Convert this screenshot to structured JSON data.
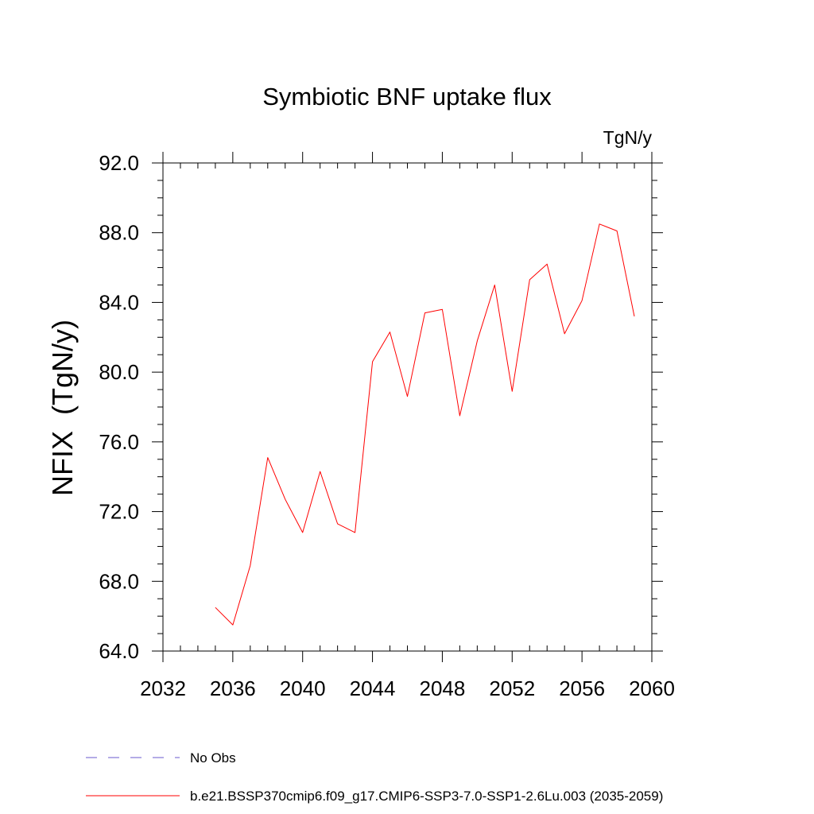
{
  "chart_data": {
    "type": "line",
    "title": "Symbiotic BNF uptake flux",
    "units": "TgN/y",
    "ylabel": "NFIX  (TgN/y)",
    "xlabel": "",
    "xlim": [
      2032,
      2060
    ],
    "ylim": [
      64,
      92
    ],
    "x_ticks": [
      2032,
      2036,
      2040,
      2044,
      2048,
      2052,
      2056,
      2060
    ],
    "x_tick_labels": [
      "2032",
      "2036",
      "2040",
      "2044",
      "2048",
      "2052",
      "2056",
      "2060"
    ],
    "y_ticks": [
      64,
      68,
      72,
      76,
      80,
      84,
      88,
      92
    ],
    "y_tick_labels": [
      "64.0",
      "68.0",
      "72.0",
      "76.0",
      "80.0",
      "84.0",
      "88.0",
      "92.0"
    ],
    "x_minor_step": 1,
    "y_minor_step": 1,
    "series": [
      {
        "name": "b.e21.BSSP370cmip6.f09_g17.CMIP6-SSP3-7.0-SSP1-2.6Lu.003 (2035-2059)",
        "color": "#ff0000",
        "style": "solid",
        "x": [
          2035,
          2036,
          2037,
          2038,
          2039,
          2040,
          2041,
          2042,
          2043,
          2044,
          2045,
          2046,
          2047,
          2048,
          2049,
          2050,
          2051,
          2052,
          2053,
          2054,
          2055,
          2056,
          2057,
          2058,
          2059
        ],
        "values": [
          66.5,
          65.5,
          68.9,
          75.1,
          72.7,
          70.8,
          74.3,
          71.3,
          70.8,
          80.6,
          82.3,
          78.6,
          83.4,
          83.6,
          77.5,
          81.8,
          85.0,
          78.9,
          85.3,
          86.2,
          82.2,
          84.1,
          88.5,
          88.1,
          83.2
        ]
      }
    ],
    "legend": [
      {
        "label": "No Obs",
        "color": "#6a5acd",
        "style": "dashed"
      },
      {
        "label": "b.e21.BSSP370cmip6.f09_g17.CMIP6-SSP3-7.0-SSP1-2.6Lu.003 (2035-2059)",
        "color": "#ff0000",
        "style": "solid"
      }
    ]
  }
}
